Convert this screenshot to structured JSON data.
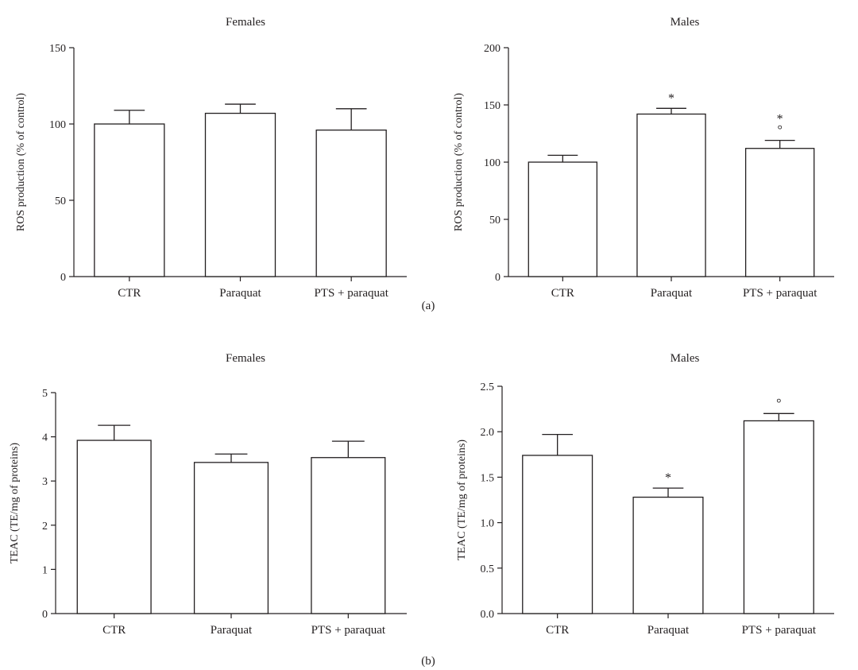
{
  "figure": {
    "panel_labels": [
      "(a)",
      "(b)"
    ]
  },
  "chart_data": [
    {
      "type": "bar",
      "panel": "(a)",
      "title": "Females",
      "xlabel": "",
      "ylabel": "ROS production (% of control)",
      "categories": [
        "CTR",
        "Paraquat",
        "PTS + paraquat"
      ],
      "values": [
        100,
        107,
        96
      ],
      "errors": [
        9,
        6,
        14
      ],
      "markers": [
        "",
        "",
        ""
      ],
      "ylim": [
        0,
        150
      ],
      "yticks": [
        0,
        50,
        100,
        150
      ],
      "ytick_labels": [
        "0",
        "50",
        "100",
        "150"
      ]
    },
    {
      "type": "bar",
      "panel": "(a)",
      "title": "Males",
      "xlabel": "",
      "ylabel": "ROS production (% of control)",
      "categories": [
        "CTR",
        "Paraquat",
        "PTS + paraquat"
      ],
      "values": [
        100,
        142,
        112
      ],
      "errors": [
        6,
        5,
        7
      ],
      "markers": [
        "",
        "*",
        "*\n°"
      ],
      "ylim": [
        0,
        200
      ],
      "yticks": [
        0,
        50,
        100,
        150,
        200
      ],
      "ytick_labels": [
        "0",
        "50",
        "100",
        "150",
        "200"
      ]
    },
    {
      "type": "bar",
      "panel": "(b)",
      "title": "Females",
      "xlabel": "",
      "ylabel": "TEAC (TE/mg of proteins)",
      "categories": [
        "CTR",
        "Paraquat",
        "PTS + paraquat"
      ],
      "values": [
        3.92,
        3.42,
        3.53
      ],
      "errors": [
        0.34,
        0.19,
        0.37
      ],
      "markers": [
        "",
        "",
        ""
      ],
      "ylim": [
        0,
        5
      ],
      "yticks": [
        0,
        1,
        2,
        3,
        4,
        5
      ],
      "ytick_labels": [
        "0",
        "1",
        "2",
        "3",
        "4",
        "5"
      ]
    },
    {
      "type": "bar",
      "panel": "(b)",
      "title": "Males",
      "xlabel": "",
      "ylabel": "TEAC (TE/mg of proteins)",
      "categories": [
        "CTR",
        "Paraquat",
        "PTS + paraquat"
      ],
      "values": [
        1.74,
        1.28,
        2.12
      ],
      "errors": [
        0.23,
        0.1,
        0.08
      ],
      "markers": [
        "",
        "*",
        "°"
      ],
      "ylim": [
        0,
        2.5
      ],
      "yticks": [
        0,
        0.5,
        1,
        1.5,
        2,
        2.5
      ],
      "ytick_labels": [
        "0.0",
        "0.5",
        "1.0",
        "1.5",
        "2.0",
        "2.5"
      ]
    }
  ]
}
